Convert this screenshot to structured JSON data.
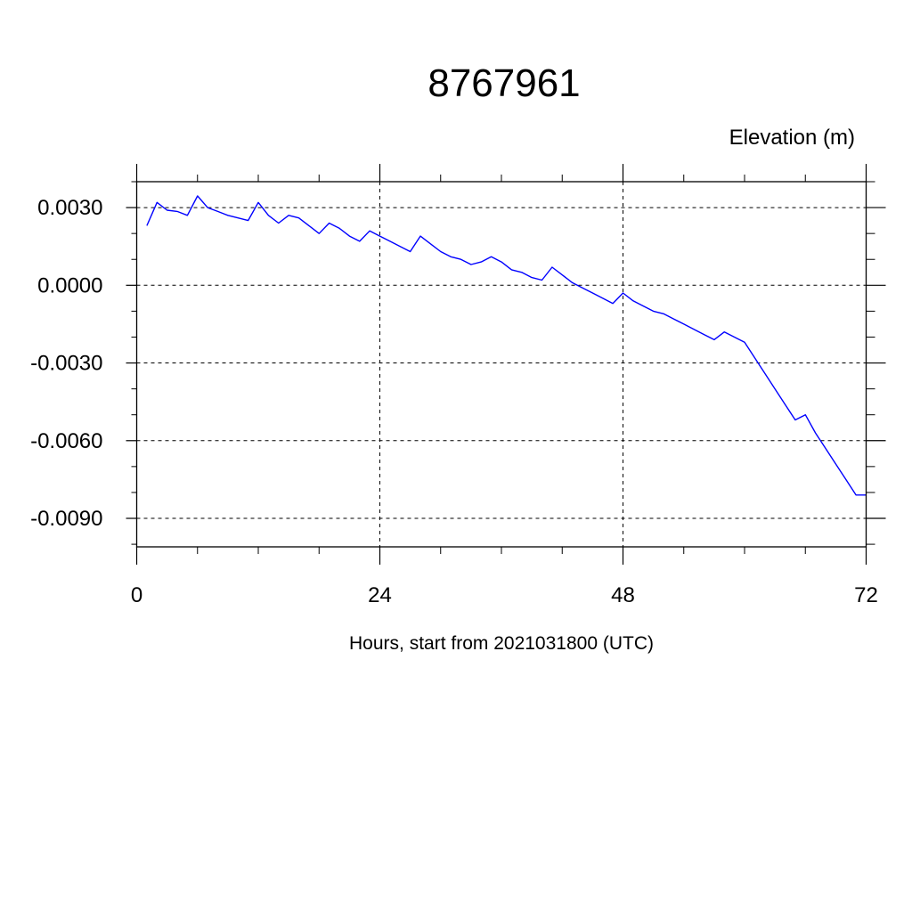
{
  "chart_data": {
    "type": "line",
    "title": "8767961",
    "ylabel": "Elevation (m)",
    "xlabel": "Hours, start from 2021031800 (UTC)",
    "xlim": [
      0,
      72
    ],
    "ylim": [
      -0.0101,
      0.004
    ],
    "x_ticks": [
      0,
      24,
      48,
      72
    ],
    "x_tick_labels": [
      "0",
      "24",
      "48",
      "72"
    ],
    "y_ticks": [
      0.003,
      0.0,
      -0.003,
      -0.006,
      -0.009
    ],
    "y_tick_labels": [
      "0.0030",
      "0.0000",
      "-0.0030",
      "-0.0060",
      "-0.0090"
    ],
    "grid": true,
    "colors": {
      "line": "#0000ff",
      "grid": "#000000",
      "axes": "#000000"
    },
    "series": [
      {
        "x": [
          1,
          2,
          3,
          4,
          5,
          6,
          7,
          8,
          9,
          10,
          11,
          12,
          13,
          14,
          15,
          16,
          17,
          18,
          19,
          20,
          21,
          22,
          23,
          24,
          25,
          26,
          27,
          28,
          29,
          30,
          31,
          32,
          33,
          34,
          35,
          36,
          37,
          38,
          39,
          40,
          41,
          42,
          43,
          44,
          45,
          46,
          47,
          48,
          49,
          50,
          51,
          52,
          53,
          54,
          55,
          56,
          57,
          58,
          59,
          60,
          61,
          62,
          63,
          64,
          65,
          66,
          67,
          68,
          69,
          70,
          71,
          72
        ],
        "y": [
          0.0023,
          0.0032,
          0.0029,
          0.00285,
          0.0027,
          0.00345,
          0.003,
          0.00285,
          0.0027,
          0.0026,
          0.0025,
          0.0032,
          0.0027,
          0.0024,
          0.0027,
          0.0026,
          0.0023,
          0.002,
          0.0024,
          0.0022,
          0.0019,
          0.0017,
          0.0021,
          0.0019,
          0.0017,
          0.0015,
          0.0013,
          0.0019,
          0.0016,
          0.0013,
          0.0011,
          0.001,
          0.0008,
          0.0009,
          0.0011,
          0.0009,
          0.0006,
          0.0005,
          0.0003,
          0.0002,
          0.0007,
          0.0004,
          0.0001,
          -0.0001,
          -0.0003,
          -0.0005,
          -0.0007,
          -0.0003,
          -0.0006,
          -0.0008,
          -0.001,
          -0.0011,
          -0.0013,
          -0.0015,
          -0.0017,
          -0.0019,
          -0.0021,
          -0.0018,
          -0.002,
          -0.0022,
          -0.0028,
          -0.0034,
          -0.004,
          -0.0046,
          -0.0052,
          -0.005,
          -0.0057,
          -0.0063,
          -0.0069,
          -0.0075,
          -0.0081,
          -0.0081
        ]
      }
    ]
  }
}
